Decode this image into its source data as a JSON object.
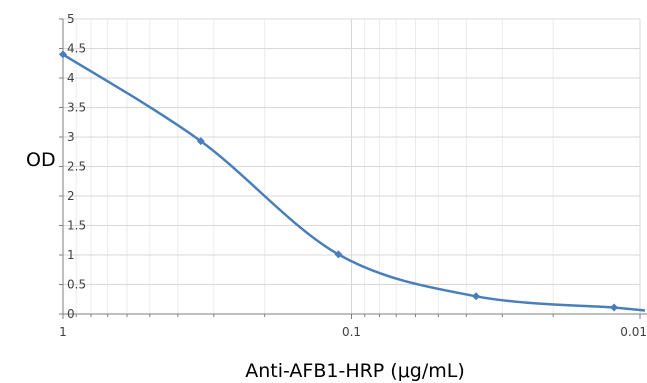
{
  "chart_data": {
    "type": "line",
    "title": "",
    "xlabel": "Anti-AFB1-HRP (μg/mL)",
    "ylabel": "OD",
    "x_scale": "log",
    "x_reversed": true,
    "xlim": [
      1,
      0.01
    ],
    "ylim": [
      0,
      5
    ],
    "grid": true,
    "legend": "none",
    "colors": {
      "series": "#4a7ebb",
      "grid": "#d9d9d9",
      "axis": "#7f7f7f"
    },
    "x_tick_labels": [
      "1",
      "0.1",
      "0.01"
    ],
    "x_ticks": [
      1,
      0.1,
      0.01
    ],
    "y_tick_labels": [
      "0",
      "0.5",
      "1",
      "1.5",
      "2",
      "2.5",
      "3",
      "3.5",
      "4",
      "4.5",
      "5"
    ],
    "y_ticks": [
      0,
      0.5,
      1,
      1.5,
      2,
      2.5,
      3,
      3.5,
      4,
      4.5,
      5
    ],
    "series": [
      {
        "x": [
          1,
          0.333,
          0.111,
          0.037,
          0.0123
        ],
        "y": [
          4.4,
          2.93,
          1.01,
          0.3,
          0.11
        ]
      }
    ]
  }
}
